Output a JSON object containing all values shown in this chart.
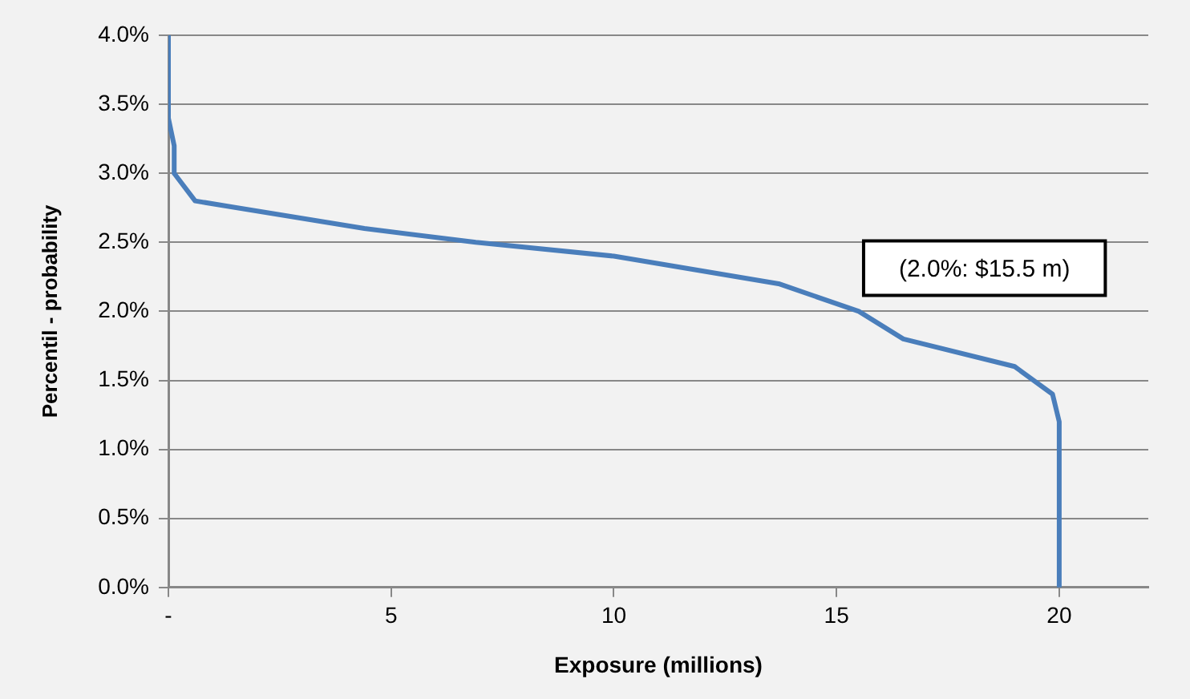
{
  "chart_data": {
    "type": "line",
    "xlabel": "Exposure (millions)",
    "ylabel": "Percentil - probability",
    "x": [
      0,
      0,
      0.13,
      0.13,
      0.6,
      4.4,
      6.9,
      10.0,
      13.7,
      15.5,
      16.5,
      19.0,
      19.85,
      20,
      20
    ],
    "series": [
      {
        "color": "#4a7ebb",
        "values": [
          4.0,
          3.4,
          3.2,
          3.0,
          2.8,
          2.6,
          2.5,
          2.4,
          2.2,
          2.0,
          1.8,
          1.6,
          1.4,
          1.2,
          0
        ]
      }
    ],
    "xlim": [
      0,
      22
    ],
    "xticks": [
      {
        "value": 0,
        "label": "-"
      },
      5,
      10,
      15,
      20
    ],
    "ylim": [
      0,
      4
    ],
    "yticks": [
      {
        "value": 0,
        "label": "0.0%"
      },
      {
        "value": 0.5,
        "label": "0.5%"
      },
      {
        "value": 1,
        "label": "1.0%"
      },
      {
        "value": 1.5,
        "label": "1.5%"
      },
      {
        "value": 2,
        "label": "2.0%"
      },
      {
        "value": 2.5,
        "label": "2.5%"
      },
      {
        "value": 3,
        "label": "3.0%"
      },
      {
        "value": 3.5,
        "label": "3.5%"
      },
      {
        "value": 4,
        "label": "4.0%"
      }
    ],
    "grid": "y",
    "legend": false,
    "annotations": [
      {
        "text": "(2.0%: $15.5 m)",
        "x": 15.5,
        "y": 2.0
      }
    ]
  }
}
